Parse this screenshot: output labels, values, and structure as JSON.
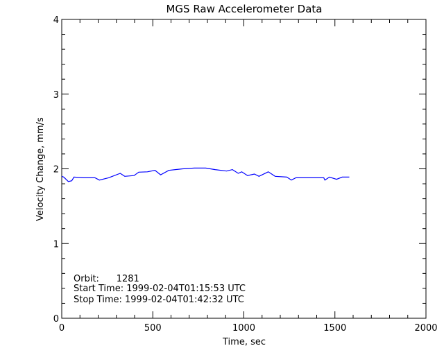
{
  "chart_data": {
    "type": "line",
    "title": "MGS Raw Accelerometer Data",
    "xlabel": "Time, sec",
    "ylabel": "Velocity Change, mm/s",
    "xlim": [
      0,
      2000
    ],
    "ylim": [
      0,
      4
    ],
    "xticks": [
      "0",
      "500",
      "1000",
      "1500",
      "2000"
    ],
    "yticks": [
      "0",
      "1",
      "2",
      "3",
      "4"
    ],
    "grid": false,
    "line_color": "#0000ff",
    "annotations": [
      "Orbit:      1281",
      "Start Time: 1999-02-04T01:15:53 UTC",
      "Stop Time: 1999-02-04T01:42:32 UTC"
    ],
    "series": [
      {
        "x": [
          0,
          11,
          36,
          55,
          67,
          120,
          182,
          207,
          257,
          321,
          346,
          397,
          423,
          470,
          512,
          543,
          588,
          664,
          728,
          791,
          842,
          905,
          937,
          969,
          988,
          1020,
          1058,
          1083,
          1134,
          1172,
          1236,
          1261,
          1286,
          1380,
          1439,
          1445,
          1470,
          1509,
          1540,
          1579
        ],
        "y": [
          1.9,
          1.89,
          1.83,
          1.84,
          1.89,
          1.88,
          1.88,
          1.85,
          1.88,
          1.94,
          1.9,
          1.91,
          1.955,
          1.96,
          1.98,
          1.92,
          1.98,
          2.0,
          2.01,
          2.01,
          1.99,
          1.97,
          1.99,
          1.94,
          1.96,
          1.91,
          1.93,
          1.9,
          1.96,
          1.9,
          1.89,
          1.85,
          1.88,
          1.88,
          1.88,
          1.85,
          1.89,
          1.86,
          1.89,
          1.89
        ]
      }
    ]
  }
}
